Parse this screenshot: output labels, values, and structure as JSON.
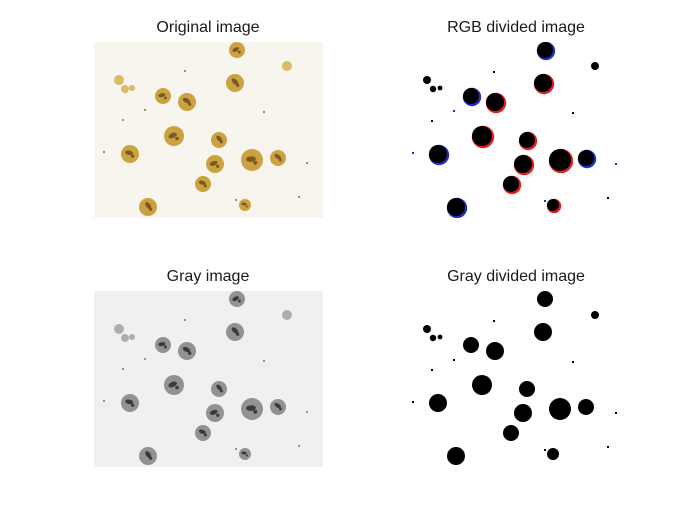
{
  "figure": {
    "panels": [
      {
        "title": "Original image",
        "style": "original"
      },
      {
        "title": "RGB divided image",
        "style": "rgb-divided"
      },
      {
        "title": "Gray image",
        "style": "gray"
      },
      {
        "title": "Gray divided image",
        "style": "gray-divided"
      }
    ]
  },
  "colors": {
    "original_background": "#f8f5ee",
    "cell_fill": "#c79a33",
    "cell_dark": "#7a5a20",
    "small_cell_fill": "#d9b45a",
    "gray_background": "#f0f0f0",
    "gray_cell_fill": "#8a8a8a",
    "gray_dark": "#3a3a3a",
    "divided_fill": "#000000",
    "rgb_edge_red": "#e02020",
    "rgb_edge_blue": "#2030c0"
  }
}
